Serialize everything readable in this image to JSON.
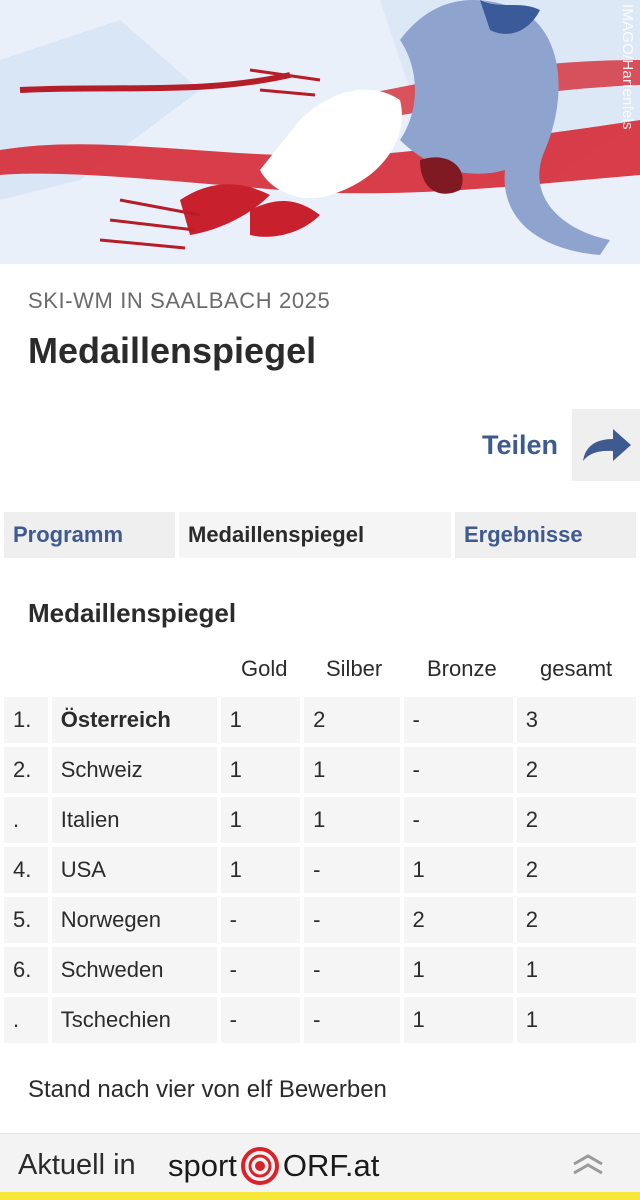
{
  "hero": {
    "credit": "IMAGO/Hartenfels"
  },
  "header": {
    "kicker": "SKI-WM IN SAALBACH 2025",
    "title": "Medaillenspiegel"
  },
  "share": {
    "label": "Teilen",
    "icon": "share-arrow-icon"
  },
  "tabs": [
    {
      "label": "Programm",
      "active": false
    },
    {
      "label": "Medaillenspiegel",
      "active": true
    },
    {
      "label": "Ergebnisse",
      "active": false
    }
  ],
  "section": {
    "title": "Medaillenspiegel"
  },
  "table": {
    "columns": [
      "Gold",
      "Silber",
      "Bronze",
      "gesamt"
    ],
    "rows": [
      {
        "rank": "1.",
        "country": "Österreich",
        "gold": "1",
        "silber": "2",
        "bronze": "-",
        "gesamt": "3"
      },
      {
        "rank": "2.",
        "country": "Schweiz",
        "gold": "1",
        "silber": "1",
        "bronze": "-",
        "gesamt": "2"
      },
      {
        "rank": ".",
        "country": "Italien",
        "gold": "1",
        "silber": "1",
        "bronze": "-",
        "gesamt": "2"
      },
      {
        "rank": "4.",
        "country": "USA",
        "gold": "1",
        "silber": "-",
        "bronze": "1",
        "gesamt": "2"
      },
      {
        "rank": "5.",
        "country": "Norwegen",
        "gold": "-",
        "silber": "-",
        "bronze": "2",
        "gesamt": "2"
      },
      {
        "rank": "6.",
        "country": "Schweden",
        "gold": "-",
        "silber": "-",
        "bronze": "1",
        "gesamt": "1"
      },
      {
        "rank": ".",
        "country": "Tschechien",
        "gold": "-",
        "silber": "-",
        "bronze": "1",
        "gesamt": "1"
      }
    ]
  },
  "note": "Stand nach vier von elf Bewerben",
  "footer": {
    "text": "Aktuell in",
    "brand_left": "sport",
    "brand_right": "ORF.at",
    "logo_icon": "orf-target-icon",
    "expand_icon": "chevron-up-double-icon",
    "accent": "#f5e83a"
  },
  "colors": {
    "link": "#3f5a8f",
    "cell_bg": "#f5f5f5",
    "brand_red": "#d8232a"
  }
}
